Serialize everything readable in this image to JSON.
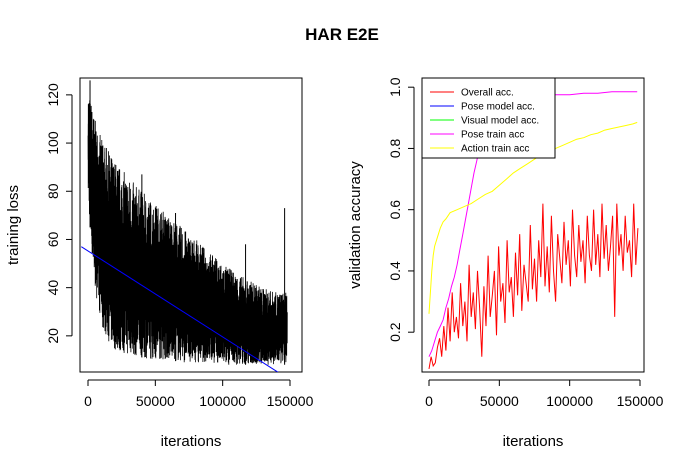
{
  "figure_title": "HAR E2E",
  "chart_data": [
    {
      "type": "line",
      "title": "",
      "xlabel": "iterations",
      "ylabel": "training loss",
      "xlim": [
        0,
        150000
      ],
      "ylim": [
        5,
        127
      ],
      "x_ticks": [
        0,
        50000,
        100000,
        150000
      ],
      "x_tick_labels": [
        "0",
        "50000",
        "100000",
        "150000"
      ],
      "y_ticks": [
        20,
        40,
        60,
        80,
        100,
        120
      ],
      "y_tick_labels": [
        "20",
        "40",
        "60",
        "80",
        "100",
        "120"
      ],
      "grid": false,
      "legend": "none",
      "series": [
        {
          "color": "#000000",
          "x": [
            0,
            2000,
            5000,
            10000,
            15000,
            20000,
            30000,
            40000,
            50000,
            60000,
            70000,
            80000,
            90000,
            100000,
            110000,
            120000,
            130000,
            140000,
            148000
          ],
          "upper": [
            122,
            118,
            110,
            102,
            97,
            93,
            86,
            80,
            75,
            70,
            65,
            60,
            55,
            50,
            46,
            43,
            40,
            38,
            38
          ],
          "lower": [
            80,
            60,
            40,
            25,
            18,
            14,
            12,
            11,
            10,
            10,
            9,
            9,
            9,
            8,
            8,
            8,
            8,
            8,
            8
          ],
          "peaks": [
            [
              1500,
              126
            ],
            [
              11000,
              99
            ],
            [
              40000,
              87
            ],
            [
              65000,
              71
            ],
            [
              117000,
              58
            ],
            [
              146000,
              73
            ]
          ]
        },
        {
          "color": "#0000ff",
          "x": [
            -5000,
            152000
          ],
          "y": [
            57,
            1
          ]
        }
      ]
    },
    {
      "type": "line",
      "title": "",
      "xlabel": "iterations",
      "ylabel": "validation accuracy",
      "xlim": [
        0,
        150000
      ],
      "ylim": [
        0.07,
        1.03
      ],
      "x_ticks": [
        0,
        50000,
        100000,
        150000
      ],
      "x_tick_labels": [
        "0",
        "50000",
        "100000",
        "150000"
      ],
      "y_ticks": [
        0.2,
        0.4,
        0.6,
        0.8,
        1.0
      ],
      "y_tick_labels": [
        "0.2",
        "0.4",
        "0.6",
        "0.8",
        "1.0"
      ],
      "grid": false,
      "legend": "top-left",
      "series": [
        {
          "name": "Overall acc.",
          "color": "#ff0000",
          "x": [
            0,
            1500,
            3000,
            4500,
            6000,
            7500,
            9000,
            10500,
            12000,
            13500,
            15000,
            16500,
            18000,
            19500,
            21000,
            22500,
            24000,
            25500,
            27000,
            28500,
            30000,
            31500,
            33000,
            34500,
            36000,
            37500,
            39000,
            40500,
            42000,
            43500,
            45000,
            46500,
            48000,
            49500,
            51000,
            52500,
            54000,
            55500,
            57000,
            58500,
            60000,
            61500,
            63000,
            64500,
            66000,
            67500,
            69000,
            70500,
            72000,
            73500,
            75000,
            76500,
            78000,
            79500,
            81000,
            82500,
            84000,
            85500,
            87000,
            88500,
            90000,
            91500,
            93000,
            94500,
            96000,
            97500,
            99000,
            100500,
            102000,
            103500,
            105000,
            106500,
            108000,
            109500,
            111000,
            112500,
            114000,
            115500,
            117000,
            118500,
            120000,
            121500,
            123000,
            124500,
            126000,
            127500,
            129000,
            130500,
            132000,
            133500,
            135000,
            136500,
            138000,
            139500,
            141000,
            142500,
            144000,
            145500,
            147000,
            148500
          ],
          "y": [
            0.08,
            0.12,
            0.09,
            0.1,
            0.15,
            0.18,
            0.12,
            0.22,
            0.14,
            0.28,
            0.17,
            0.33,
            0.2,
            0.25,
            0.18,
            0.36,
            0.22,
            0.3,
            0.17,
            0.42,
            0.25,
            0.33,
            0.21,
            0.4,
            0.28,
            0.12,
            0.35,
            0.22,
            0.45,
            0.25,
            0.32,
            0.4,
            0.19,
            0.48,
            0.3,
            0.36,
            0.23,
            0.5,
            0.33,
            0.38,
            0.25,
            0.46,
            0.32,
            0.52,
            0.27,
            0.42,
            0.36,
            0.3,
            0.55,
            0.34,
            0.44,
            0.3,
            0.5,
            0.38,
            0.62,
            0.35,
            0.48,
            0.33,
            0.58,
            0.4,
            0.3,
            0.52,
            0.44,
            0.36,
            0.56,
            0.42,
            0.5,
            0.35,
            0.6,
            0.45,
            0.38,
            0.55,
            0.43,
            0.5,
            0.36,
            0.58,
            0.45,
            0.4,
            0.6,
            0.42,
            0.52,
            0.38,
            0.62,
            0.44,
            0.55,
            0.4,
            0.48,
            0.58,
            0.25,
            0.62,
            0.45,
            0.52,
            0.4,
            0.58,
            0.46,
            0.5,
            0.38,
            0.62,
            0.42,
            0.54
          ]
        },
        {
          "name": "Pose model acc.",
          "color": "#0000ff",
          "x": [],
          "y": []
        },
        {
          "name": "Visual model acc.",
          "color": "#00ff00",
          "x": [],
          "y": []
        },
        {
          "name": "Pose train acc",
          "color": "#ff00ff",
          "x": [
            0,
            2000,
            4000,
            6000,
            8000,
            10000,
            12000,
            14000,
            16000,
            18000,
            20000,
            22000,
            24000,
            26000,
            28000,
            30000,
            32000,
            34000,
            36000,
            38000,
            40000,
            42000,
            44000,
            46000,
            48000,
            50000,
            55000,
            60000,
            65000,
            70000,
            75000,
            80000,
            85000,
            90000,
            95000,
            100000,
            110000,
            120000,
            130000,
            140000,
            148000
          ],
          "y": [
            0.12,
            0.14,
            0.17,
            0.2,
            0.22,
            0.24,
            0.28,
            0.31,
            0.35,
            0.38,
            0.42,
            0.47,
            0.52,
            0.57,
            0.62,
            0.67,
            0.72,
            0.76,
            0.8,
            0.84,
            0.87,
            0.89,
            0.91,
            0.92,
            0.93,
            0.94,
            0.95,
            0.955,
            0.96,
            0.965,
            0.965,
            0.97,
            0.97,
            0.975,
            0.975,
            0.975,
            0.98,
            0.98,
            0.985,
            0.985,
            0.985
          ]
        },
        {
          "name": "Action train acc",
          "color": "#ffff00",
          "x": [
            0,
            1000,
            2000,
            3000,
            4000,
            6000,
            8000,
            10000,
            12000,
            15000,
            20000,
            25000,
            30000,
            35000,
            40000,
            45000,
            50000,
            55000,
            60000,
            65000,
            70000,
            75000,
            80000,
            85000,
            90000,
            95000,
            100000,
            105000,
            110000,
            115000,
            120000,
            125000,
            130000,
            135000,
            140000,
            145000,
            148000
          ],
          "y": [
            0.26,
            0.33,
            0.4,
            0.45,
            0.48,
            0.51,
            0.54,
            0.56,
            0.57,
            0.59,
            0.6,
            0.61,
            0.62,
            0.635,
            0.65,
            0.66,
            0.68,
            0.7,
            0.72,
            0.735,
            0.75,
            0.765,
            0.78,
            0.79,
            0.8,
            0.81,
            0.82,
            0.83,
            0.835,
            0.845,
            0.85,
            0.86,
            0.865,
            0.87,
            0.875,
            0.88,
            0.885
          ]
        }
      ]
    }
  ]
}
